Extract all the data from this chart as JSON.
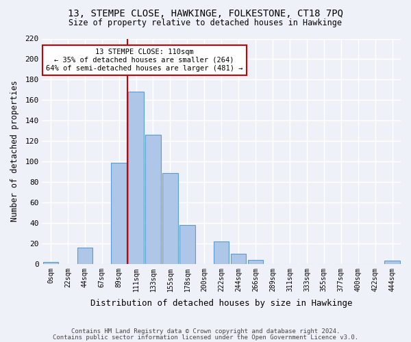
{
  "title": "13, STEMPE CLOSE, HAWKINGE, FOLKESTONE, CT18 7PQ",
  "subtitle": "Size of property relative to detached houses in Hawkinge",
  "xlabel": "Distribution of detached houses by size in Hawkinge",
  "ylabel": "Number of detached properties",
  "bin_labels": [
    "0sqm",
    "22sqm",
    "44sqm",
    "67sqm",
    "89sqm",
    "111sqm",
    "133sqm",
    "155sqm",
    "178sqm",
    "200sqm",
    "222sqm",
    "244sqm",
    "266sqm",
    "289sqm",
    "311sqm",
    "333sqm",
    "355sqm",
    "377sqm",
    "400sqm",
    "422sqm",
    "444sqm"
  ],
  "bar_heights": [
    2,
    0,
    16,
    0,
    99,
    168,
    126,
    89,
    38,
    0,
    22,
    10,
    4,
    0,
    0,
    0,
    0,
    0,
    0,
    0,
    3
  ],
  "bar_color": "#aec6e8",
  "bar_edge_color": "#5b9bd5",
  "highlight_line_color": "#cc0000",
  "annotation_title": "13 STEMPE CLOSE: 110sqm",
  "annotation_line1": "← 35% of detached houses are smaller (264)",
  "annotation_line2": "64% of semi-detached houses are larger (481) →",
  "annotation_box_color": "#ffffff",
  "annotation_box_edge": "#cc0000",
  "ylim": [
    0,
    220
  ],
  "yticks": [
    0,
    20,
    40,
    60,
    80,
    100,
    120,
    140,
    160,
    180,
    200,
    220
  ],
  "footer1": "Contains HM Land Registry data © Crown copyright and database right 2024.",
  "footer2": "Contains public sector information licensed under the Open Government Licence v3.0.",
  "bg_color": "#eef2f8"
}
